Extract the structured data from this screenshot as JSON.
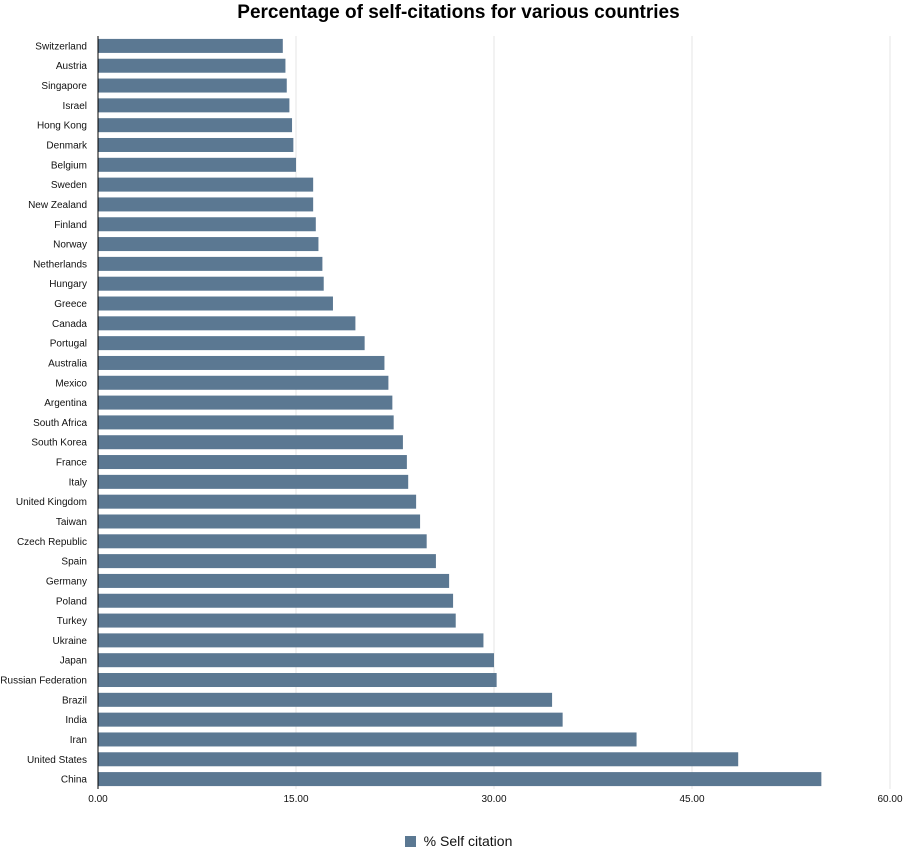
{
  "chart_data": {
    "type": "bar",
    "orientation": "horizontal",
    "title": "Percentage of self-citations for various countries",
    "categories": [
      "Switzerland",
      "Austria",
      "Singapore",
      "Israel",
      "Hong Kong",
      "Denmark",
      "Belgium",
      "Sweden",
      "New Zealand",
      "Finland",
      "Norway",
      "Netherlands",
      "Hungary",
      "Greece",
      "Canada",
      "Portugal",
      "Australia",
      "Mexico",
      "Argentina",
      "South Africa",
      "South Korea",
      "France",
      "Italy",
      "United Kingdom",
      "Taiwan",
      "Czech Republic",
      "Spain",
      "Germany",
      "Poland",
      "Turkey",
      "Ukraine",
      "Japan",
      "Russian Federation",
      "Brazil",
      "India",
      "Iran",
      "United States",
      "China"
    ],
    "series": [
      {
        "name": "% Self citation",
        "color": "#5b7892",
        "values": [
          14.0,
          14.2,
          14.3,
          14.5,
          14.7,
          14.8,
          15.0,
          16.3,
          16.3,
          16.5,
          16.7,
          17.0,
          17.1,
          17.8,
          19.5,
          20.2,
          21.7,
          22.0,
          22.3,
          22.4,
          23.1,
          23.4,
          23.5,
          24.1,
          24.4,
          24.9,
          25.6,
          26.6,
          26.9,
          27.1,
          29.2,
          30.0,
          30.2,
          34.4,
          35.2,
          40.8,
          48.5,
          54.8
        ]
      }
    ],
    "xlim": [
      0,
      60
    ],
    "xticks": [
      "0.00",
      "15.00",
      "30.00",
      "45.00",
      "60.00"
    ],
    "grid": true,
    "legend_position": "bottom-center"
  }
}
